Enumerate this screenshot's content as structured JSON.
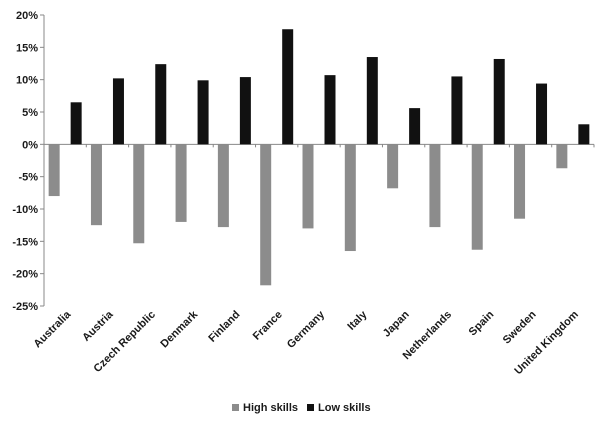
{
  "chart_data": {
    "type": "bar",
    "title": "",
    "xlabel": "",
    "ylabel": "",
    "categories": [
      "Australia",
      "Austria",
      "Czech Republic",
      "Denmark",
      "Finland",
      "France",
      "Germany",
      "Italy",
      "Japan",
      "Netherlands",
      "Spain",
      "Sweden",
      "United Kingdom"
    ],
    "series": [
      {
        "name": "High skills",
        "color": "#8c8c8c",
        "values": [
          -8.0,
          -12.5,
          -15.3,
          -12.0,
          -12.8,
          -21.8,
          -13.0,
          -16.5,
          -6.8,
          -12.8,
          -16.3,
          -11.5,
          -3.7
        ]
      },
      {
        "name": "Low skills",
        "color": "#111111",
        "values": [
          6.5,
          10.2,
          12.4,
          9.9,
          10.4,
          17.8,
          10.7,
          13.5,
          5.6,
          10.5,
          13.2,
          9.4,
          3.1
        ]
      }
    ],
    "ylim": [
      -25,
      20
    ],
    "yticks": [
      -25,
      -20,
      -15,
      -10,
      -5,
      0,
      5,
      10,
      15,
      20
    ],
    "yticklabels": [
      "-25%",
      "-20%",
      "-15%",
      "-10%",
      "-5%",
      "0%",
      "5%",
      "10%",
      "15%",
      "20%"
    ],
    "grid": false,
    "legend_position": "bottom"
  }
}
